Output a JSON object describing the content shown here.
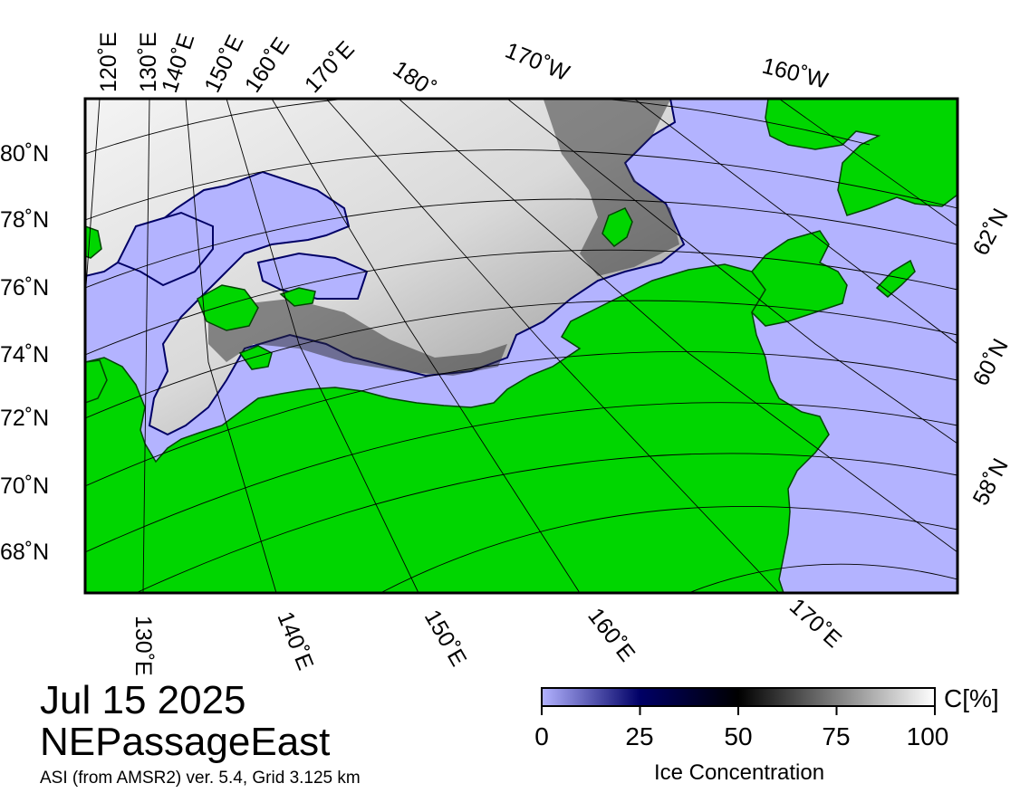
{
  "date_label": "Jul 15 2025",
  "region_name": "NEPassageEast",
  "source_text": "ASI (from AMSR2) ver. 5.4,  Grid 3.125 km",
  "colorbar": {
    "title": "Ice Concentration",
    "unit": "C[%]",
    "ticks": [
      "0",
      "25",
      "50",
      "75",
      "100"
    ],
    "colors": [
      "#b3b3ff",
      "#000066",
      "#000000",
      "#ffffff"
    ]
  },
  "map_colors": {
    "ocean": "#b3b3ff",
    "land": "#00d600",
    "ice": "#ececec",
    "frame": "#000000"
  },
  "graticule": {
    "top_labels": [
      "120˚E",
      "130˚E",
      "140˚E",
      "150˚E",
      "160˚E",
      "170˚E",
      "180˚",
      "170˚W",
      "160˚W"
    ],
    "left_labels": [
      "80˚N",
      "78˚N",
      "76˚N",
      "74˚N",
      "72˚N",
      "70˚N",
      "68˚N"
    ],
    "bottom_labels": [
      "130˚E",
      "140˚E",
      "150˚E",
      "160˚E",
      "170˚E"
    ],
    "right_labels": [
      "62˚N",
      "60˚N",
      "58˚N"
    ]
  }
}
